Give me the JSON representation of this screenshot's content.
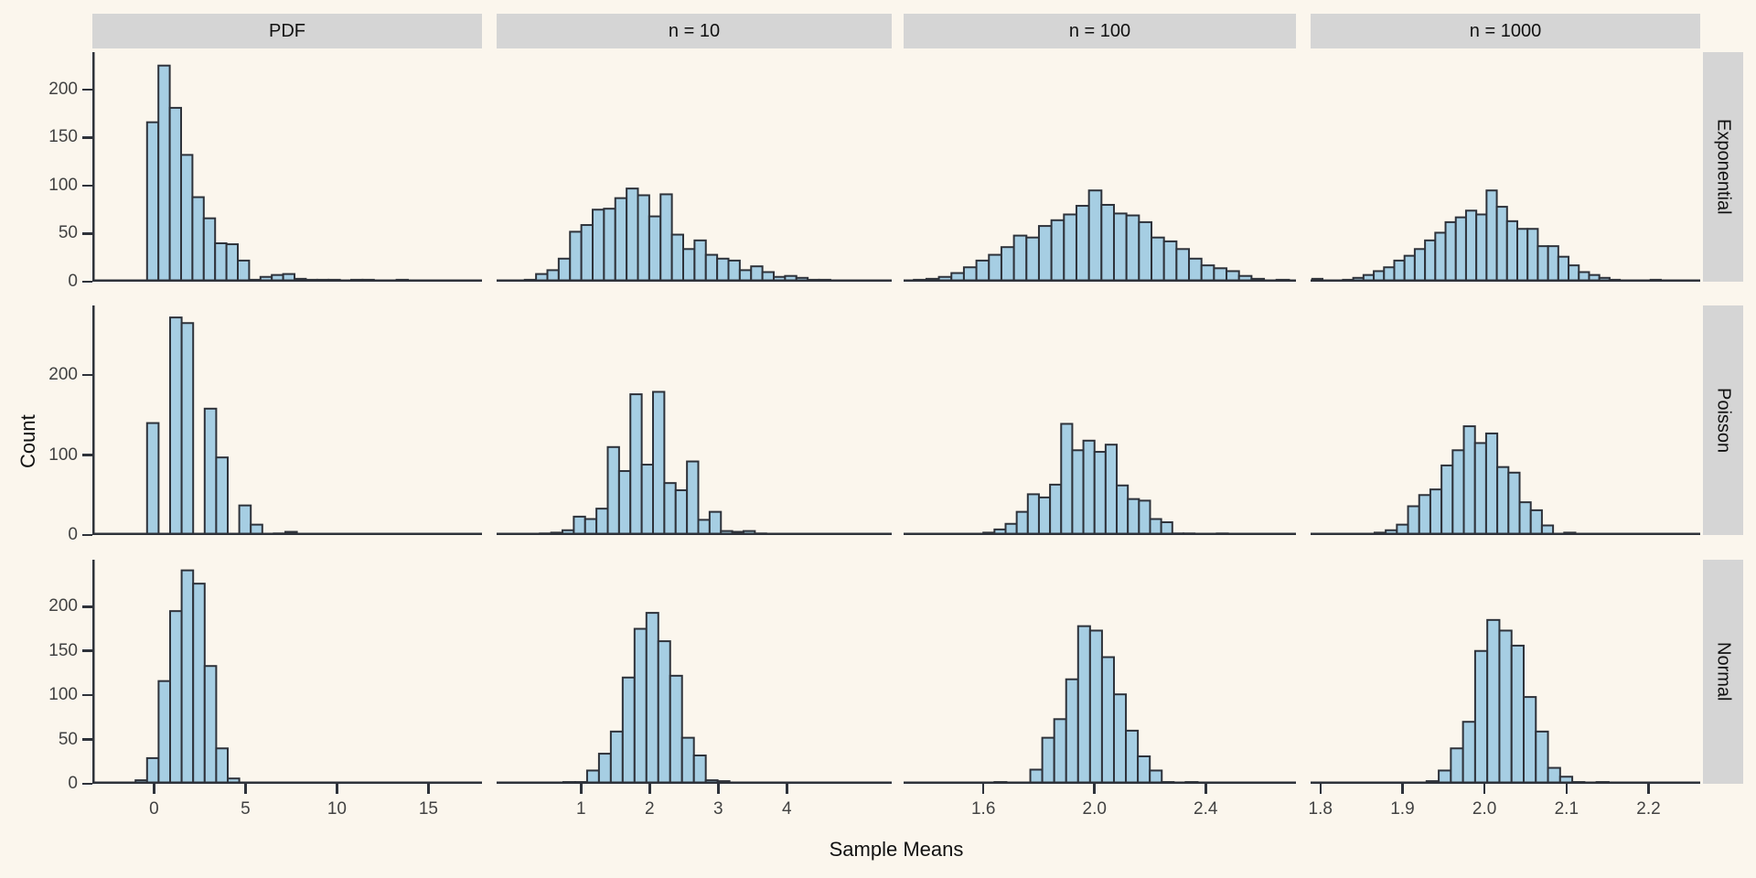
{
  "chart_data": {
    "type": "bar",
    "subtype": "faceted-histogram-grid",
    "title": "",
    "xlabel": "Sample Means",
    "ylabel": "Count",
    "legend": "none",
    "grid": "off",
    "facet_columns": [
      {
        "label": "PDF",
        "xmin": -3.37,
        "xmax": 17.93,
        "ticks": [
          0,
          5,
          10,
          15
        ],
        "tick_labels": [
          "0",
          "5",
          "10",
          "15"
        ]
      },
      {
        "label": "n = 10",
        "xmin": -0.23,
        "xmax": 5.53,
        "ticks": [
          1,
          2,
          3,
          4
        ],
        "tick_labels": [
          "1",
          "2",
          "3",
          "4"
        ]
      },
      {
        "label": "n = 100",
        "xmin": 1.313,
        "xmax": 2.725,
        "ticks": [
          1.6,
          2.0,
          2.4
        ],
        "tick_labels": [
          "1.6",
          "2.0",
          "2.4"
        ]
      },
      {
        "label": "n = 1000",
        "xmin": 1.788,
        "xmax": 2.263,
        "ticks": [
          1.8,
          1.9,
          2.0,
          2.1,
          2.2
        ],
        "tick_labels": [
          "1.8",
          "1.9",
          "2.0",
          "2.1",
          "2.2"
        ]
      }
    ],
    "facet_rows": [
      {
        "label": "Exponential",
        "ymax": 239,
        "yticks": [
          0,
          50,
          100,
          150,
          200
        ],
        "ytick_labels": [
          "0",
          "50",
          "100",
          "150",
          "200"
        ]
      },
      {
        "label": "Poisson",
        "ymax": 287,
        "yticks": [
          0,
          100,
          200
        ],
        "ytick_labels": [
          "0",
          "100",
          "200"
        ]
      },
      {
        "label": "Normal",
        "ymax": 253,
        "yticks": [
          0,
          50,
          100,
          150,
          200
        ],
        "ytick_labels": [
          "0",
          "50",
          "100",
          "150",
          "200"
        ]
      }
    ],
    "panels": [
      {
        "row": 0,
        "col": 0,
        "x0": -0.38,
        "binwidth": 0.62,
        "counts": [
          166,
          225,
          181,
          132,
          88,
          66,
          40,
          39,
          22,
          2,
          5,
          7,
          8,
          3,
          2,
          2,
          2,
          1,
          2,
          2,
          1,
          1,
          2,
          1,
          1,
          1,
          0,
          1,
          1
        ]
      },
      {
        "row": 0,
        "col": 1,
        "x0": -0.15,
        "binwidth": 0.165,
        "counts": [
          1,
          1,
          2,
          8,
          12,
          24,
          52,
          59,
          75,
          76,
          87,
          97,
          90,
          68,
          91,
          49,
          34,
          43,
          28,
          24,
          22,
          12,
          16,
          10,
          5,
          6,
          4,
          2,
          2,
          1
        ]
      },
      {
        "row": 0,
        "col": 2,
        "x0": 1.35,
        "binwidth": 0.045,
        "counts": [
          2,
          3,
          5,
          9,
          15,
          22,
          28,
          36,
          48,
          46,
          58,
          64,
          70,
          79,
          95,
          80,
          71,
          69,
          62,
          46,
          42,
          34,
          24,
          17,
          14,
          11,
          6,
          3,
          1,
          2
        ]
      },
      {
        "row": 0,
        "col": 3,
        "x0": 1.79,
        "binwidth": 0.0125,
        "counts": [
          3,
          1,
          1,
          2,
          4,
          7,
          11,
          15,
          22,
          27,
          34,
          43,
          51,
          62,
          67,
          74,
          70,
          95,
          78,
          63,
          55,
          55,
          37,
          37,
          26,
          17,
          10,
          7,
          4,
          2,
          1,
          1,
          1,
          2,
          1
        ]
      },
      {
        "row": 1,
        "col": 0,
        "x0": -0.38,
        "binwidth": 0.63,
        "counts": [
          140,
          0,
          272,
          265,
          0,
          158,
          97,
          0,
          37,
          13,
          0,
          2,
          4
        ]
      },
      {
        "row": 1,
        "col": 1,
        "x0": 0.4,
        "binwidth": 0.165,
        "counts": [
          2,
          3,
          6,
          23,
          20,
          33,
          110,
          80,
          176,
          88,
          179,
          65,
          56,
          92,
          19,
          29,
          5,
          4,
          5,
          2,
          1
        ]
      },
      {
        "row": 1,
        "col": 2,
        "x0": 1.6,
        "binwidth": 0.04,
        "counts": [
          3,
          7,
          14,
          29,
          51,
          47,
          63,
          139,
          106,
          118,
          104,
          113,
          62,
          45,
          43,
          20,
          16,
          2,
          2,
          0,
          0,
          2
        ]
      },
      {
        "row": 1,
        "col": 3,
        "x0": 1.866,
        "binwidth": 0.0136,
        "counts": [
          3,
          6,
          13,
          36,
          50,
          57,
          87,
          106,
          136,
          115,
          127,
          85,
          78,
          41,
          31,
          12,
          0,
          3,
          1
        ]
      },
      {
        "row": 2,
        "col": 0,
        "x0": -1.01,
        "binwidth": 0.63,
        "counts": [
          4,
          29,
          116,
          195,
          241,
          226,
          133,
          40,
          6,
          1
        ]
      },
      {
        "row": 2,
        "col": 1,
        "x0": 0.57,
        "binwidth": 0.173,
        "counts": [
          1,
          2,
          2,
          15,
          34,
          59,
          120,
          175,
          193,
          161,
          122,
          52,
          32,
          4,
          3,
          1
        ]
      },
      {
        "row": 2,
        "col": 2,
        "x0": 1.64,
        "binwidth": 0.043,
        "counts": [
          2,
          0,
          1,
          16,
          52,
          73,
          118,
          178,
          173,
          143,
          101,
          60,
          31,
          15,
          2,
          0,
          2
        ]
      },
      {
        "row": 2,
        "col": 3,
        "x0": 1.885,
        "binwidth": 0.0148,
        "counts": [
          1,
          1,
          0,
          3,
          15,
          40,
          70,
          150,
          185,
          173,
          156,
          98,
          59,
          18,
          8,
          2,
          0,
          2
        ]
      }
    ]
  },
  "colors": {
    "background": "#fbf6ed",
    "bar_fill": "#a6cee3",
    "bar_stroke": "#2e323a",
    "axis_line": "#2e323a",
    "tick_text": "#424242",
    "strip_background": "#d5d5d5",
    "strip_text": "#111111",
    "title_text": "#111111"
  }
}
